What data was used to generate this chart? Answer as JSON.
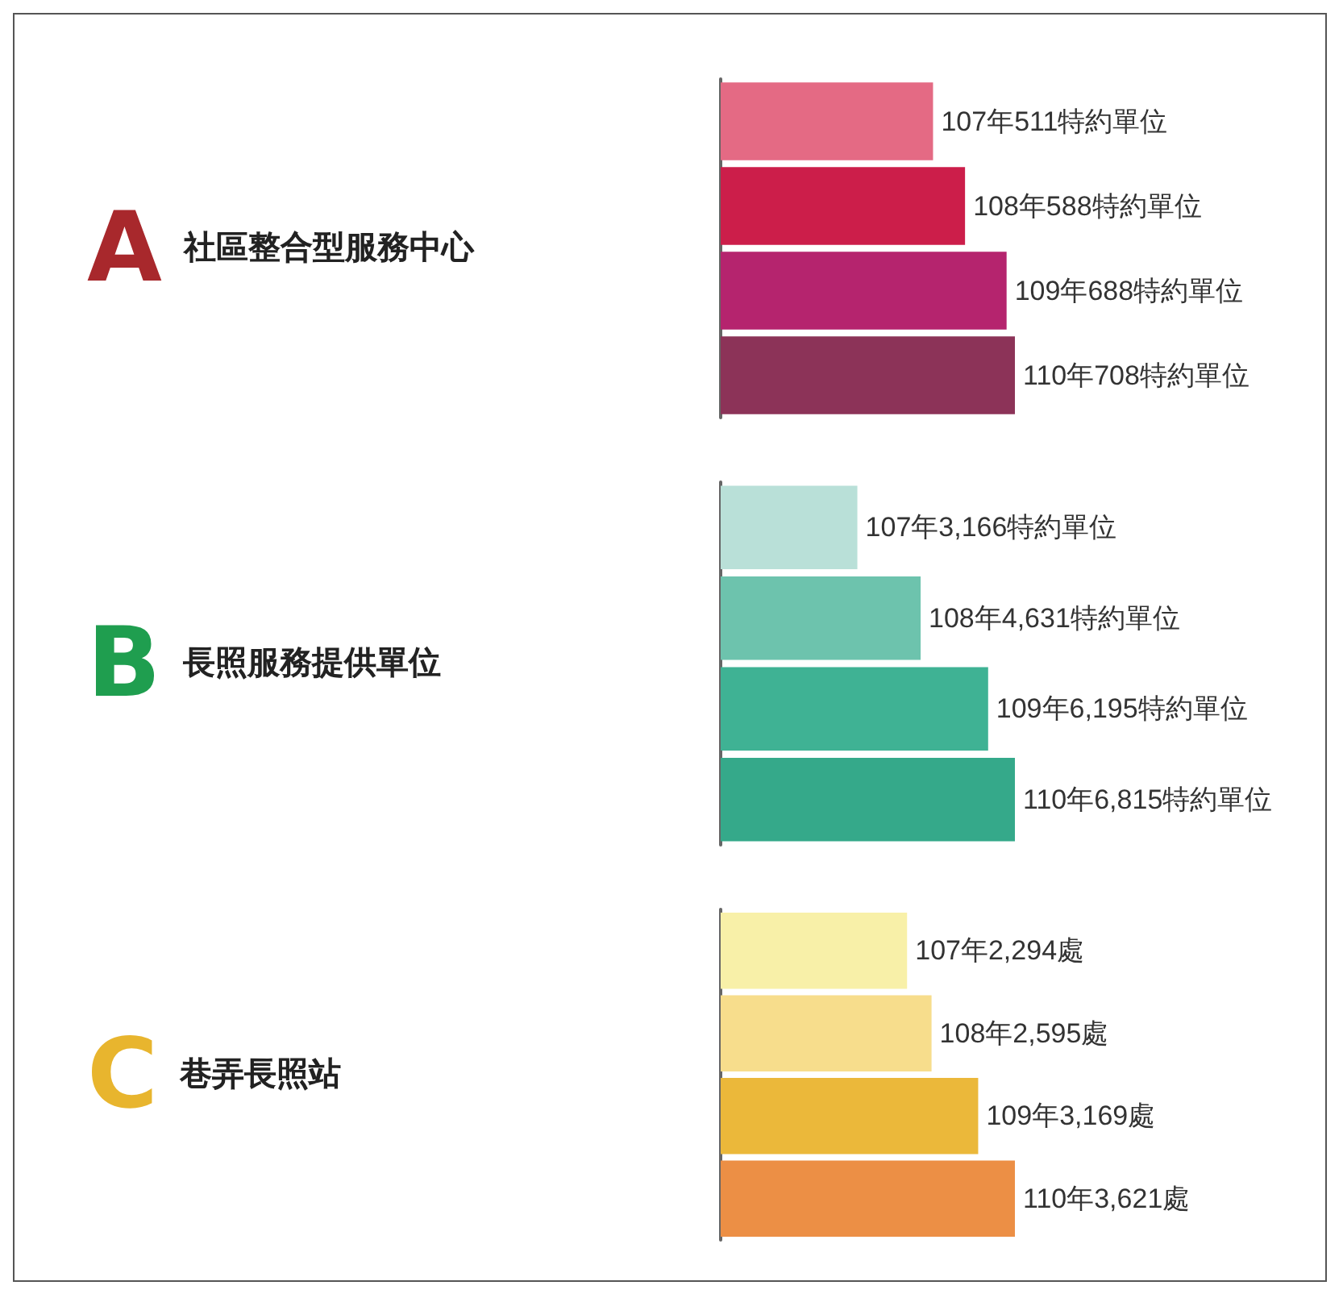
{
  "chart_data": [
    {
      "type": "bar",
      "orientation": "horizontal",
      "title": "A 社區整合型服務中心",
      "categories": [
        null,
        null,
        null,
        null
      ],
      "values": [
        511,
        588,
        688,
        708
      ],
      "colors": [
        "#e46a84",
        "#cc1e4a",
        "#b5246e",
        "#8c3358"
      ],
      "value_labels": [
        "107年511特約單位",
        "108年588特約單位",
        "109年688特約單位",
        "110年708特約單位"
      ],
      "tick_labels": false
    },
    {
      "type": "bar",
      "orientation": "horizontal",
      "title": "B 長照服務提供單位",
      "categories": [
        null,
        null,
        null,
        null
      ],
      "values": [
        3166,
        4631,
        6195,
        6815
      ],
      "colors": [
        "#b9e0d8",
        "#6dc3ad",
        "#3fb294",
        "#35a98a"
      ],
      "value_labels": [
        "107年3,166特約單位",
        "108年4,631特約單位",
        "109年6,195特約單位",
        "110年6,815特約單位"
      ],
      "tick_labels": false
    },
    {
      "type": "bar",
      "orientation": "horizontal",
      "title": "C 巷弄長照站",
      "categories": [
        null,
        null,
        null,
        null
      ],
      "values": [
        2294,
        2595,
        3169,
        3621
      ],
      "colors": [
        "#f8f0a8",
        "#f7dd8c",
        "#ebb83a",
        "#ec8f45"
      ],
      "value_labels": [
        "107年2,294處",
        "108年2,595處",
        "109年3,169處",
        "110年3,621處"
      ],
      "tick_labels": false
    }
  ]
}
